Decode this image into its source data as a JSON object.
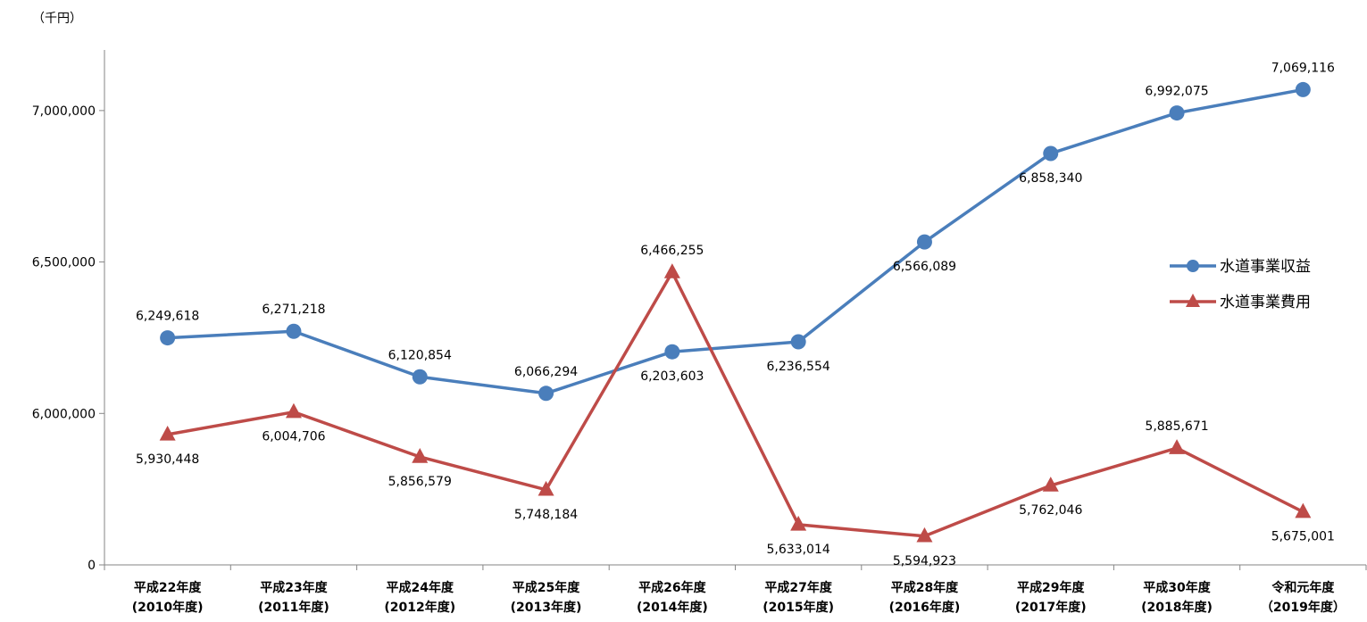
{
  "chart_data": {
    "type": "line",
    "unit_label": "（千円）",
    "categories": [
      [
        "平成22年度",
        "(2010年度)"
      ],
      [
        "平成23年度",
        "(2011年度)"
      ],
      [
        "平成24年度",
        "(2012年度)"
      ],
      [
        "平成25年度",
        "(2013年度)"
      ],
      [
        "平成26年度",
        "(2014年度)"
      ],
      [
        "平成27年度",
        "(2015年度)"
      ],
      [
        "平成28年度",
        "(2016年度)"
      ],
      [
        "平成29年度",
        "(2017年度)"
      ],
      [
        "平成30年度",
        "(2018年度)"
      ],
      [
        "令和元年度",
        "（2019年度）"
      ]
    ],
    "y_ticks": [
      "0",
      "6,000,000",
      "6,500,000",
      "7,000,000"
    ],
    "y_tick_values": [
      5500000,
      6000000,
      6500000,
      7000000
    ],
    "y_axis_break": "axis visually truncated: bottom tick labelled 0, plotted range 5,500,000–7,200,000",
    "ylim": [
      5500000,
      7200000
    ],
    "grid": false,
    "legend_position": "right",
    "series": [
      {
        "name": "水道事業収益",
        "color": "#4a7ebb",
        "marker": "circle",
        "values": [
          6249618,
          6271218,
          6120854,
          6066294,
          6203603,
          6236554,
          6566089,
          6858340,
          6992075,
          7069116
        ],
        "labels": [
          "6,249,618",
          "6,271,218",
          "6,120,854",
          "6,066,294",
          "6,203,603",
          "6,236,554",
          "6,566,089",
          "6,858,340",
          "6,992,075",
          "7,069,116"
        ],
        "label_pos": [
          "above",
          "above",
          "above",
          "above",
          "below",
          "below",
          "below",
          "below",
          "above",
          "above"
        ]
      },
      {
        "name": "水道事業費用",
        "color": "#be4b48",
        "marker": "triangle",
        "values": [
          5930448,
          6004706,
          5856579,
          5748184,
          6466255,
          5633014,
          5594923,
          5762046,
          5885671,
          5675001
        ],
        "labels": [
          "5,930,448",
          "6,004,706",
          "5,856,579",
          "5,748,184",
          "6,466,255",
          "5,633,014",
          "5,594,923",
          "5,762,046",
          "5,885,671",
          "5,675,001"
        ],
        "label_pos": [
          "below",
          "below",
          "below",
          "below",
          "above",
          "below",
          "below",
          "below",
          "above",
          "below"
        ]
      }
    ]
  }
}
